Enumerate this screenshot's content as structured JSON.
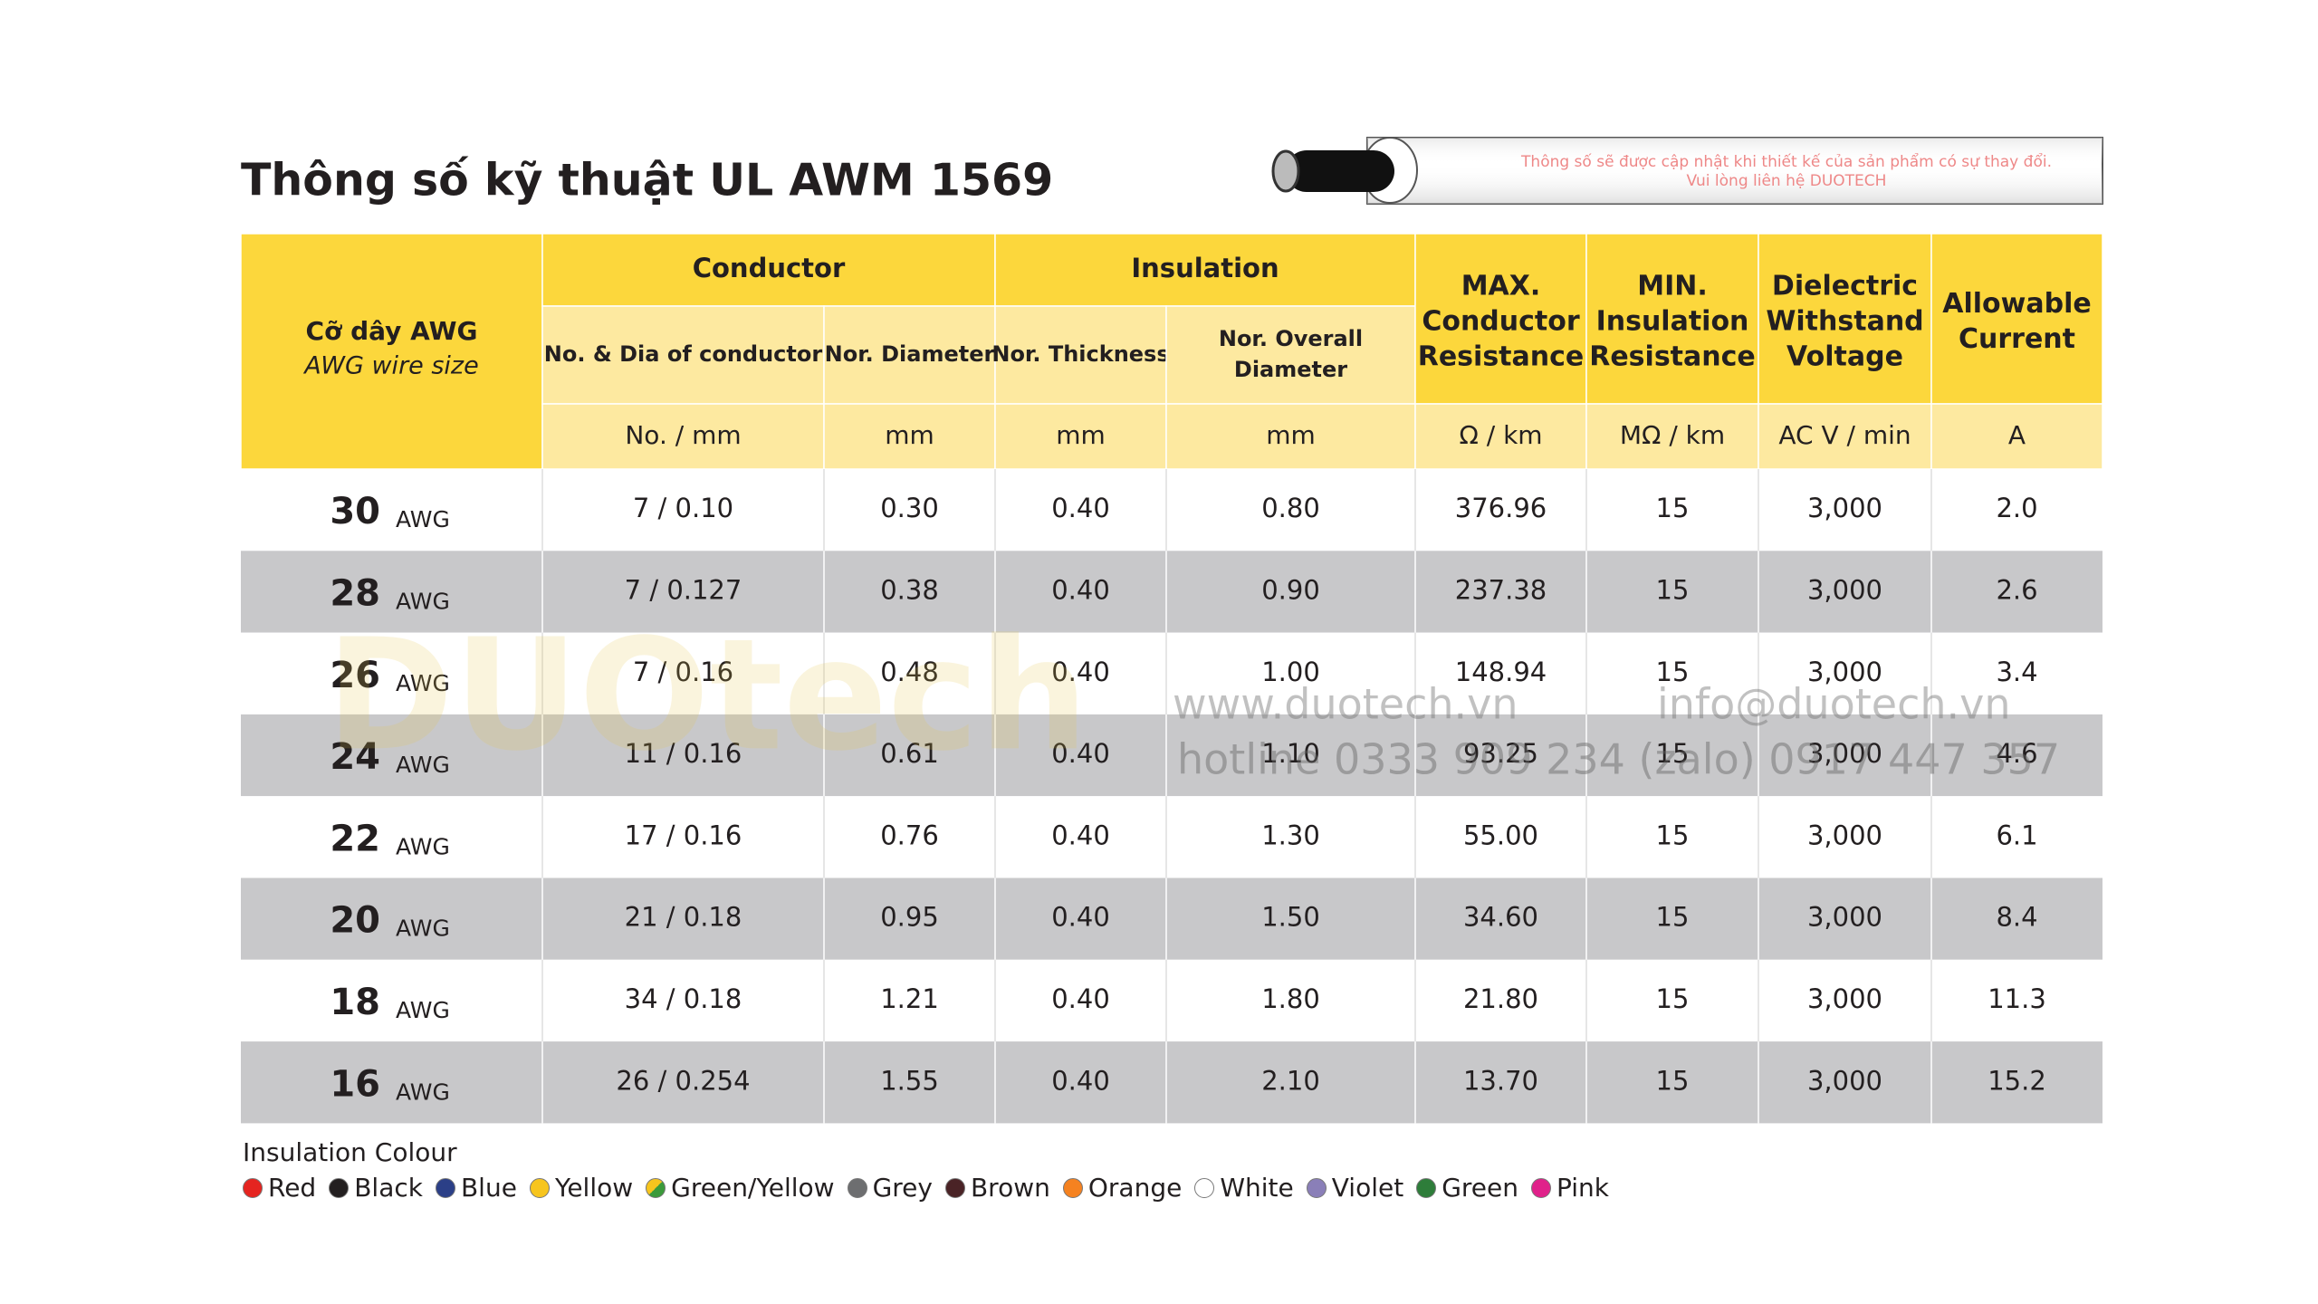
{
  "title": "Thông số kỹ  thuật UL AWM 1569",
  "notice": [
    "Thông số sẽ được cập nhật khi thiết kế của sản phẩm có sự thay đổi.",
    "Vui lòng liên hệ DUOTECH"
  ],
  "table": {
    "size_header": [
      "Cỡ dây AWG",
      "AWG wire size"
    ],
    "groups": [
      "Conductor",
      "Insulation"
    ],
    "columns": [
      [
        "No. & Dia of conductor"
      ],
      [
        "Nor. Diameter"
      ],
      [
        "Nor. Thickness"
      ],
      [
        "Nor. Overall",
        "Diameter"
      ],
      [
        "MAX.",
        "Conductor",
        "Resistance"
      ],
      [
        "MIN.",
        "Insulation",
        "Resistance"
      ],
      [
        "Dielectric",
        "Withstand",
        "Voltage"
      ],
      [
        "Allowable",
        "Current"
      ]
    ],
    "units": [
      "No. / mm",
      "mm",
      "mm",
      "mm",
      "Ω / km",
      "MΩ / km",
      "AC V / min",
      "A"
    ],
    "rows": [
      {
        "size": "30",
        "unit": "AWG",
        "cells": [
          "7 / 0.10",
          "0.30",
          "0.40",
          "0.80",
          "376.96",
          "15",
          "3,000",
          "2.0"
        ]
      },
      {
        "size": "28",
        "unit": "AWG",
        "cells": [
          "7 / 0.127",
          "0.38",
          "0.40",
          "0.90",
          "237.38",
          "15",
          "3,000",
          "2.6"
        ]
      },
      {
        "size": "26",
        "unit": "AWG",
        "cells": [
          "7 / 0.16",
          "0.48",
          "0.40",
          "1.00",
          "148.94",
          "15",
          "3,000",
          "3.4"
        ]
      },
      {
        "size": "24",
        "unit": "AWG",
        "cells": [
          "11 / 0.16",
          "0.61",
          "0.40",
          "1.10",
          "93.25",
          "15",
          "3,000",
          "4.6"
        ]
      },
      {
        "size": "22",
        "unit": "AWG",
        "cells": [
          "17 / 0.16",
          "0.76",
          "0.40",
          "1.30",
          "55.00",
          "15",
          "3,000",
          "6.1"
        ]
      },
      {
        "size": "20",
        "unit": "AWG",
        "cells": [
          "21 / 0.18",
          "0.95",
          "0.40",
          "1.50",
          "34.60",
          "15",
          "3,000",
          "8.4"
        ]
      },
      {
        "size": "18",
        "unit": "AWG",
        "cells": [
          "34 / 0.18",
          "1.21",
          "0.40",
          "1.80",
          "21.80",
          "15",
          "3,000",
          "11.3"
        ]
      },
      {
        "size": "16",
        "unit": "AWG",
        "cells": [
          "26 / 0.254",
          "1.55",
          "0.40",
          "2.10",
          "13.70",
          "15",
          "3,000",
          "15.2"
        ]
      }
    ]
  },
  "watermark": {
    "brand": "DUOtech",
    "website": "www.duotech.vn",
    "email": "info@duotech.vn",
    "hotline": "hotline  0333 909 234  (zalo) 0917 447 357"
  },
  "legend": {
    "title": "Insulation Colour",
    "items": [
      {
        "name": "Red",
        "color": "#e52420"
      },
      {
        "name": "Black",
        "color": "#231f20"
      },
      {
        "name": "Blue",
        "color": "#2b3f87"
      },
      {
        "name": "Yellow",
        "color": "#f7c51e"
      },
      {
        "name": "Green/Yellow",
        "color": "#3b9a3b"
      },
      {
        "name": "Grey",
        "color": "#6d6e70"
      },
      {
        "name": "Brown",
        "color": "#4a2326"
      },
      {
        "name": "Orange",
        "color": "#f58220"
      },
      {
        "name": "White",
        "color": "#ffffff"
      },
      {
        "name": "Violet",
        "color": "#8a7fb8"
      },
      {
        "name": "Green",
        "color": "#2e7d3a"
      },
      {
        "name": "Pink",
        "color": "#e0218a"
      }
    ]
  }
}
